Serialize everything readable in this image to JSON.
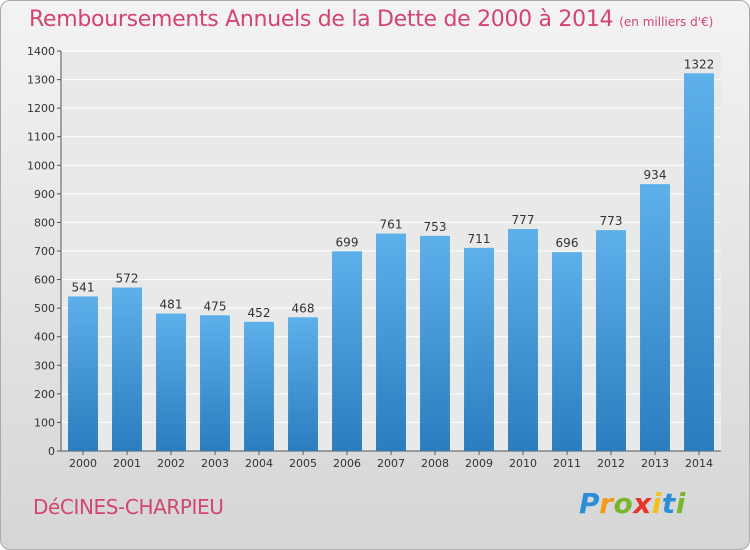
{
  "chart_data": {
    "type": "bar",
    "title": "Remboursements Annuels de la Dette de 2000 à 2014",
    "unit": "(en milliers d'€)",
    "categories": [
      "2000",
      "2001",
      "2002",
      "2003",
      "2004",
      "2005",
      "2006",
      "2007",
      "2008",
      "2009",
      "2010",
      "2011",
      "2012",
      "2013",
      "2014"
    ],
    "values": [
      541,
      572,
      481,
      475,
      452,
      468,
      699,
      761,
      753,
      711,
      777,
      696,
      773,
      934,
      1322
    ],
    "ylim": [
      0,
      1400
    ],
    "yticks": [
      0,
      100,
      200,
      300,
      400,
      500,
      600,
      700,
      800,
      900,
      1000,
      1100,
      1200,
      1300,
      1400
    ],
    "grid": true,
    "xlabel": "",
    "ylabel": ""
  },
  "footer": {
    "place": "DéCINES-CHARPIEU",
    "brand_letters": [
      "P",
      "r",
      "o",
      "x",
      "i",
      "t",
      "i"
    ],
    "brand_colors": [
      "#2a8fd6",
      "#f29a1a",
      "#7ab52e",
      "#e8342a",
      "#f2c21a",
      "#2a8fd6",
      "#7ab52e"
    ]
  },
  "colors": {
    "accent": "#d2456f",
    "bar_top": "#5db0ea",
    "bar_bottom": "#2a7dbf"
  }
}
